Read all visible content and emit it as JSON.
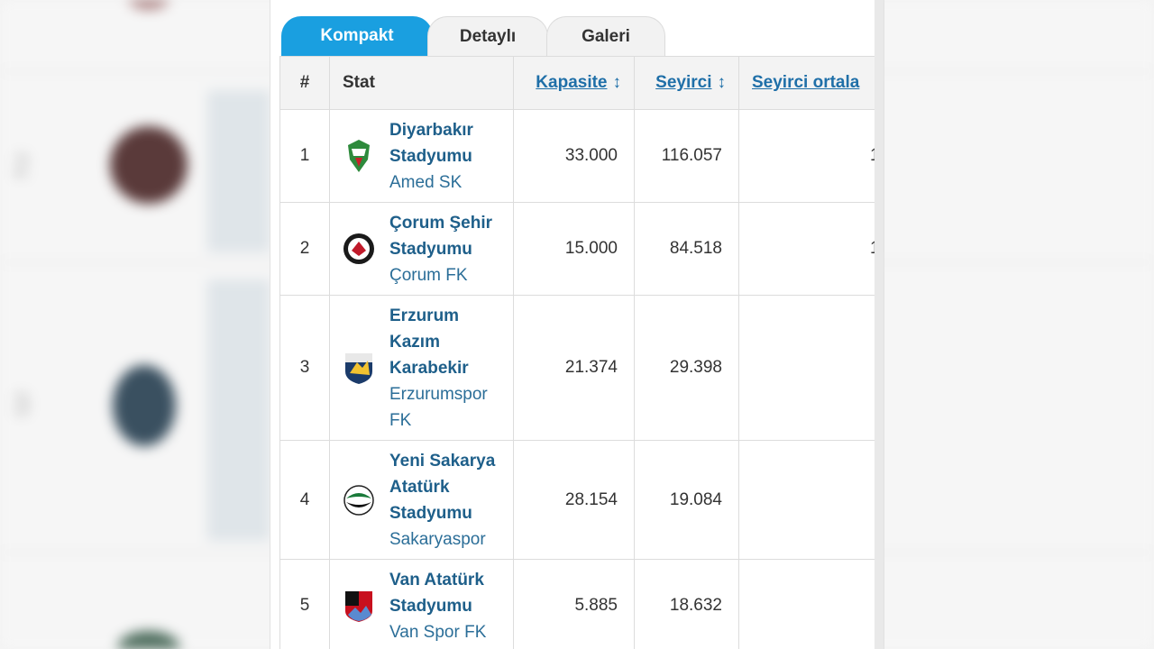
{
  "tabs": [
    {
      "label": "Kompakt",
      "active": true
    },
    {
      "label": "Detaylı",
      "active": false
    },
    {
      "label": "Galeri",
      "active": false
    }
  ],
  "table": {
    "headers": {
      "rank": "#",
      "stadium": "Stat",
      "capacity": "Kapasite",
      "attendance": "Seyirci",
      "average": "Seyirci ortala",
      "sort_arrow": "↕"
    },
    "rows": [
      {
        "rank": "1",
        "stadium": "Diyarbakır Stadyumu",
        "club": "Amed SK",
        "capacity": "33.000",
        "attendance": "116.057",
        "avg_fragment": "1"
      },
      {
        "rank": "2",
        "stadium": "Çorum Şehir Stadyumu",
        "club": "Çorum FK",
        "capacity": "15.000",
        "attendance": "84.518",
        "avg_fragment": "1"
      },
      {
        "rank": "3",
        "stadium": "Erzurum Kazım Karabekir",
        "club": "Erzurumspor FK",
        "capacity": "21.374",
        "attendance": "29.398",
        "avg_fragment": ""
      },
      {
        "rank": "4",
        "stadium": "Yeni Sakarya Atatürk Stadyumu",
        "club": "Sakaryaspor",
        "capacity": "28.154",
        "attendance": "19.084",
        "avg_fragment": ""
      },
      {
        "rank": "5",
        "stadium": "Van Atatürk Stadyumu",
        "club": "Van Spor FK",
        "capacity": "5.885",
        "attendance": "18.632",
        "avg_fragment": ""
      }
    ]
  },
  "colors": {
    "tab_active": "#1a9fe0",
    "link": "#1f6fa8",
    "stadium_name": "#1e5f8a"
  },
  "icons": [
    "amed-sk-crest-icon",
    "corum-fk-crest-icon",
    "erzurumspor-crest-icon",
    "sakaryaspor-crest-icon",
    "van-spor-crest-icon"
  ]
}
